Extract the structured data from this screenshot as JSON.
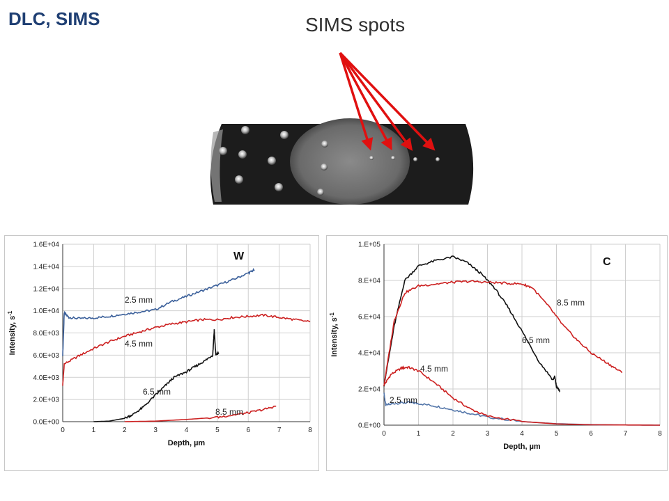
{
  "slide": {
    "title": "DLC, SIMS",
    "spots_label": "SIMS spots"
  },
  "colors": {
    "title": "#1f3f73",
    "arrow": "#e01010",
    "series_2_5": "#3a5f9a",
    "series_4_5": "#cc2020",
    "series_6_5": "#111111",
    "series_8_5": "#cc2020"
  },
  "chart_data": [
    {
      "type": "line",
      "title": "W",
      "xlabel": "Depth, µm",
      "ylabel": "Intensity, s-1",
      "xlim": [
        0,
        8
      ],
      "ylim": [
        0,
        16000
      ],
      "x_ticks": [
        "0",
        "1",
        "2",
        "3",
        "4",
        "5",
        "6",
        "7",
        "8"
      ],
      "y_ticks": [
        "0.0E+00",
        "2.0E+03",
        "4.0E+03",
        "6.0E+03",
        "8.0E+03",
        "1.0E+04",
        "1.2E+04",
        "1.4E+04",
        "1.6E+04"
      ],
      "grid": true,
      "series": [
        {
          "name": "2.5 mm",
          "color": "#3a5f9a",
          "x": [
            0,
            0.05,
            0.2,
            0.5,
            1,
            1.5,
            2,
            2.5,
            3,
            3.5,
            4,
            4.5,
            5,
            5.5,
            6,
            6.2
          ],
          "y": [
            6000,
            9800,
            9400,
            9300,
            9350,
            9500,
            9700,
            9900,
            10100,
            10800,
            11300,
            11800,
            12300,
            12800,
            13400,
            13700
          ]
        },
        {
          "name": "4.5 mm",
          "color": "#cc2020",
          "x": [
            0,
            0.05,
            0.5,
            1,
            1.5,
            2,
            2.5,
            3,
            3.5,
            4,
            4.5,
            5,
            5.5,
            6,
            6.5,
            7,
            7.5,
            8
          ],
          "y": [
            3300,
            5200,
            5900,
            6600,
            7200,
            7700,
            8100,
            8500,
            8800,
            9000,
            9200,
            9200,
            9400,
            9500,
            9600,
            9400,
            9200,
            9000
          ]
        },
        {
          "name": "6.5 mm",
          "color": "#111111",
          "x": [
            1,
            1.5,
            2,
            2.3,
            2.6,
            3,
            3.3,
            3.6,
            4,
            4.3,
            4.6,
            4.85,
            4.9,
            4.95,
            5.05
          ],
          "y": [
            0,
            50,
            300,
            700,
            1300,
            2400,
            3200,
            4000,
            4500,
            5000,
            5500,
            6000,
            8300,
            6000,
            6200
          ]
        },
        {
          "name": "8.5 mm",
          "color": "#cc2020",
          "x": [
            2,
            3,
            4,
            5,
            5.5,
            6,
            6.5,
            6.9
          ],
          "y": [
            0,
            50,
            200,
            400,
            600,
            800,
            1100,
            1400
          ]
        }
      ]
    },
    {
      "type": "line",
      "title": "C",
      "xlabel": "Depth, µm",
      "ylabel": "Intensity, s-1",
      "xlim": [
        0,
        8
      ],
      "ylim": [
        0,
        100000
      ],
      "x_ticks": [
        "0",
        "1",
        "2",
        "3",
        "4",
        "5",
        "6",
        "7",
        "8"
      ],
      "y_ticks": [
        "0.E+00",
        "2.E+04",
        "4.E+04",
        "6.E+04",
        "8.E+04",
        "1.E+05"
      ],
      "grid": true,
      "series": [
        {
          "name": "2.5 mm",
          "color": "#5577aa",
          "x": [
            0,
            0.05,
            0.3,
            0.7,
            1,
            1.5,
            2,
            2.5,
            3,
            4,
            5,
            6,
            7,
            8
          ],
          "y": [
            18000,
            11000,
            12000,
            12500,
            12000,
            10500,
            8500,
            6500,
            4500,
            2000,
            800,
            300,
            100,
            0
          ]
        },
        {
          "name": "4.5 mm",
          "color": "#cc2020",
          "x": [
            0,
            0.2,
            0.5,
            0.7,
            1,
            1.5,
            2,
            2.5,
            3,
            4,
            5,
            6,
            7,
            8
          ],
          "y": [
            22000,
            28000,
            31500,
            32000,
            30000,
            23000,
            15000,
            9000,
            5000,
            2000,
            700,
            200,
            100,
            0
          ]
        },
        {
          "name": "6.5 mm",
          "color": "#111111",
          "x": [
            0,
            0.3,
            0.6,
            1,
            1.5,
            2,
            2.4,
            2.8,
            3.2,
            3.6,
            4,
            4.5,
            4.9,
            4.95,
            5,
            5.1
          ],
          "y": [
            22000,
            55000,
            80000,
            88000,
            91000,
            93000,
            90000,
            84000,
            76000,
            65000,
            52000,
            35000,
            25000,
            27000,
            21000,
            19000
          ]
        },
        {
          "name": "8.5 mm",
          "color": "#cc2020",
          "x": [
            0,
            0.3,
            0.6,
            1,
            1.5,
            2,
            2.5,
            3,
            3.5,
            4,
            4.3,
            4.8,
            5.2,
            5.6,
            6,
            6.5,
            6.9
          ],
          "y": [
            22000,
            58000,
            73000,
            77000,
            78000,
            79000,
            79500,
            79000,
            78500,
            78000,
            76000,
            65000,
            55000,
            47000,
            40000,
            34000,
            29000
          ]
        }
      ]
    }
  ]
}
